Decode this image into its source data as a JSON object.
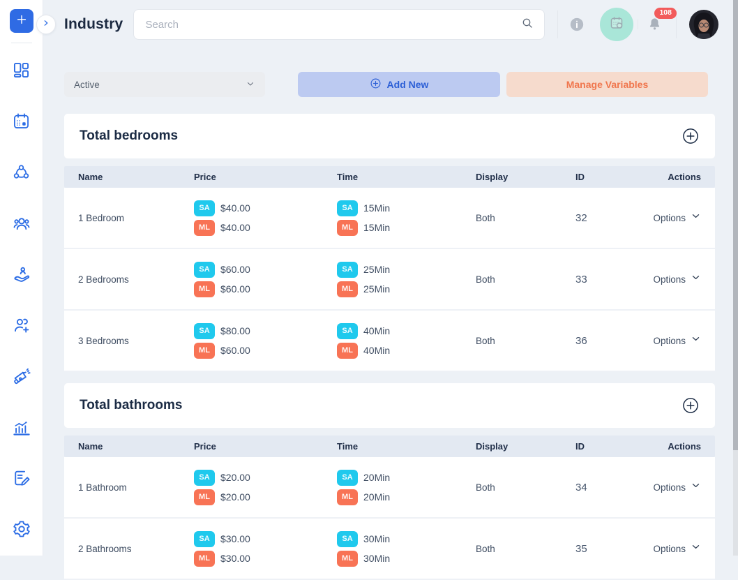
{
  "header": {
    "title": "Industry",
    "search_placeholder": "Search",
    "notification_count": "108"
  },
  "toolbar": {
    "filter_value": "Active",
    "add_new_label": "Add New",
    "manage_variables_label": "Manage Variables"
  },
  "table_columns": [
    "Name",
    "Price",
    "Time",
    "Display",
    "ID",
    "Actions"
  ],
  "badges": {
    "sa_label": "SA",
    "ml_label": "ML"
  },
  "sections": [
    {
      "title": "Total bedrooms",
      "rows": [
        {
          "name": "1 Bedroom",
          "price_sa": "$40.00",
          "price_ml": "$40.00",
          "time_sa": "15Min",
          "time_ml": "15Min",
          "display": "Both",
          "id": "32",
          "actions_label": "Options"
        },
        {
          "name": "2 Bedrooms",
          "price_sa": "$60.00",
          "price_ml": "$60.00",
          "time_sa": "25Min",
          "time_ml": "25Min",
          "display": "Both",
          "id": "33",
          "actions_label": "Options"
        },
        {
          "name": "3 Bedrooms",
          "price_sa": "$80.00",
          "price_ml": "$60.00",
          "time_sa": "40Min",
          "time_ml": "40Min",
          "display": "Both",
          "id": "36",
          "actions_label": "Options"
        }
      ]
    },
    {
      "title": "Total bathrooms",
      "rows": [
        {
          "name": "1 Bathroom",
          "price_sa": "$20.00",
          "price_ml": "$20.00",
          "time_sa": "20Min",
          "time_ml": "20Min",
          "display": "Both",
          "id": "34",
          "actions_label": "Options"
        },
        {
          "name": "2 Bathrooms",
          "price_sa": "$30.00",
          "price_ml": "$30.00",
          "time_sa": "30Min",
          "time_ml": "30Min",
          "display": "Both",
          "id": "35",
          "actions_label": "Options"
        }
      ]
    }
  ],
  "icons": {
    "sidebar": [
      "plus",
      "dashboard",
      "calendar",
      "connections",
      "team",
      "service",
      "add-user",
      "marketing",
      "analytics",
      "forms",
      "settings"
    ],
    "topbar": [
      "collapse-chevron",
      "search",
      "info",
      "calendar-widget",
      "bell",
      "avatar"
    ]
  },
  "colors": {
    "accent_blue": "#2b6ce5",
    "sa_badge": "#1fc9ed",
    "ml_badge": "#f87355",
    "add_new_bg": "#bccaf1",
    "add_new_text": "#2c5fd6",
    "manage_bg": "#f6dbcd",
    "manage_text": "#f0764d",
    "notification_red": "#f25b5b",
    "teal_button": "#a9e6d8",
    "table_header_bg": "#e3e9f2",
    "page_bg": "#edf1f6"
  }
}
